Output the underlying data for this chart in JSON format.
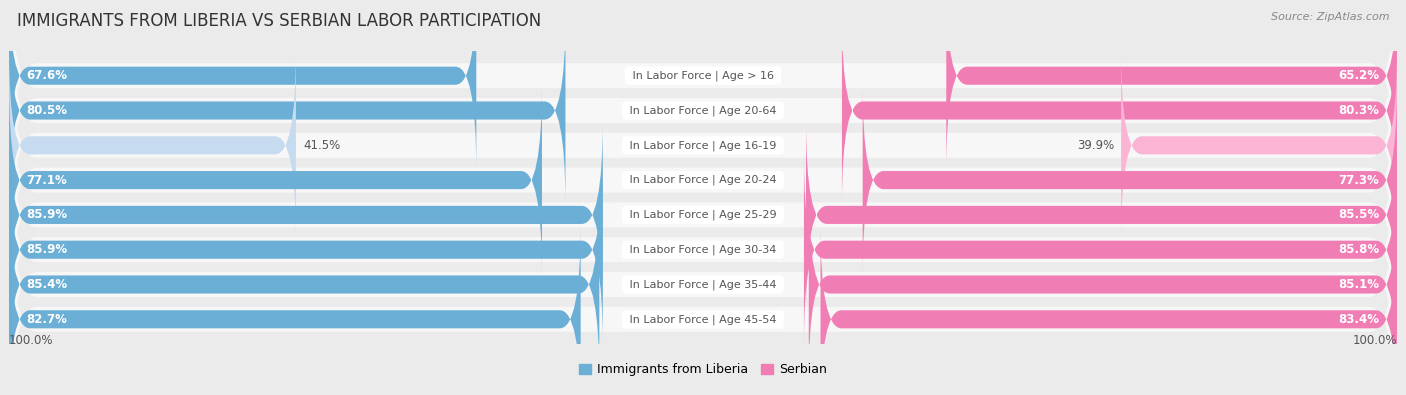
{
  "title": "IMMIGRANTS FROM LIBERIA VS SERBIAN LABOR PARTICIPATION",
  "source": "Source: ZipAtlas.com",
  "categories": [
    "In Labor Force | Age > 16",
    "In Labor Force | Age 20-64",
    "In Labor Force | Age 16-19",
    "In Labor Force | Age 20-24",
    "In Labor Force | Age 25-29",
    "In Labor Force | Age 30-34",
    "In Labor Force | Age 35-44",
    "In Labor Force | Age 45-54"
  ],
  "liberia_values": [
    67.6,
    80.5,
    41.5,
    77.1,
    85.9,
    85.9,
    85.4,
    82.7
  ],
  "serbian_values": [
    65.2,
    80.3,
    39.9,
    77.3,
    85.5,
    85.8,
    85.1,
    83.4
  ],
  "liberia_color": "#6baed6",
  "liberia_color_light": "#c6dbef",
  "serbian_color": "#f07eb5",
  "serbian_color_light": "#fbb4d4",
  "bg_color": "#ebebeb",
  "row_bg": "#f7f7f7",
  "row_bg_light": "#f7f7f7",
  "legend_liberia": "Immigrants from Liberia",
  "legend_serbian": "Serbian",
  "axis_label_left": "100.0%",
  "axis_label_right": "100.0%",
  "title_fontsize": 12,
  "source_fontsize": 8,
  "value_fontsize": 8.5,
  "category_fontsize": 8,
  "legend_fontsize": 9,
  "light_indices": [
    2
  ]
}
